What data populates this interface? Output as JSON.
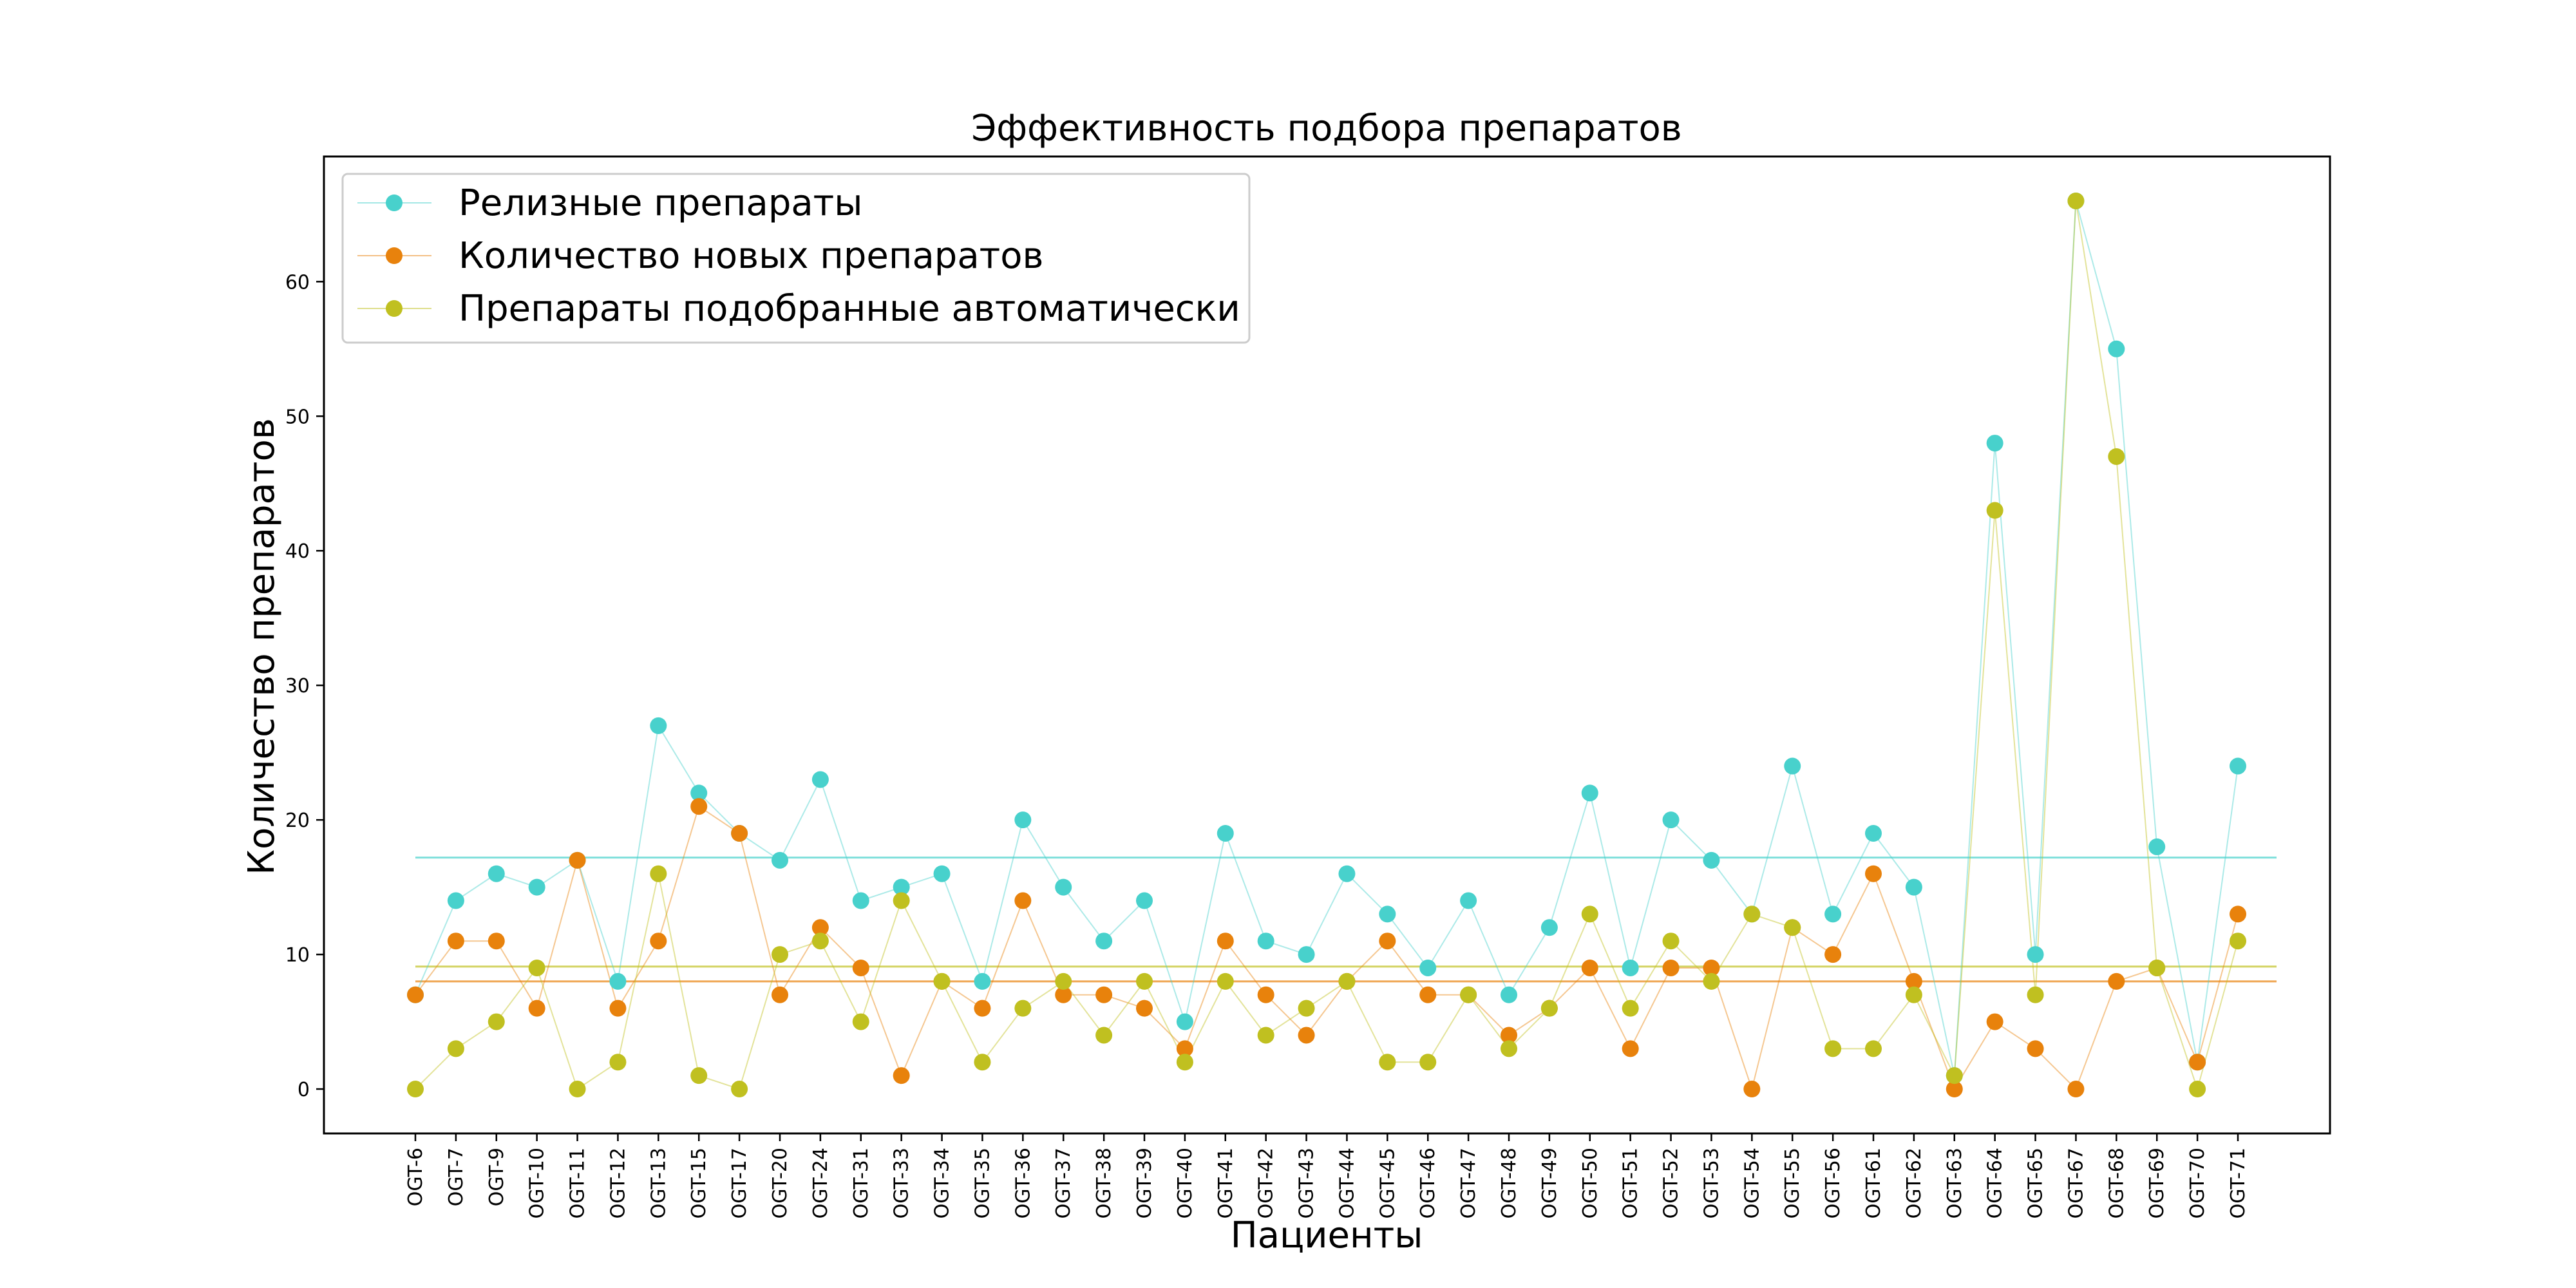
{
  "chart_data": {
    "type": "line",
    "title": "Эффективность подбора препаратов",
    "xlabel": "Пациенты",
    "ylabel": "Количество препаратов",
    "categories": [
      "OGT-6",
      "OGT-7",
      "OGT-9",
      "OGT-10",
      "OGT-11",
      "OGT-12",
      "OGT-13",
      "OGT-15",
      "OGT-17",
      "OGT-20",
      "OGT-24",
      "OGT-31",
      "OGT-33",
      "OGT-34",
      "OGT-35",
      "OGT-36",
      "OGT-37",
      "OGT-38",
      "OGT-39",
      "OGT-40",
      "OGT-41",
      "OGT-42",
      "OGT-43",
      "OGT-44",
      "OGT-45",
      "OGT-46",
      "OGT-47",
      "OGT-48",
      "OGT-49",
      "OGT-50",
      "OGT-51",
      "OGT-52",
      "OGT-53",
      "OGT-54",
      "OGT-55",
      "OGT-56",
      "OGT-61",
      "OGT-62",
      "OGT-63",
      "OGT-64",
      "OGT-65",
      "OGT-67",
      "OGT-68",
      "OGT-69",
      "OGT-70",
      "OGT-71"
    ],
    "ylim": [
      -3.3,
      69.3
    ],
    "yticks": [
      0,
      10,
      20,
      30,
      40,
      50,
      60
    ],
    "grid": false,
    "legend_position": "top-left",
    "series": [
      {
        "name": "Релизные препараты",
        "color": "#48d1cc",
        "mean": 17.2,
        "values": [
          7,
          14,
          16,
          15,
          17,
          8,
          27,
          22,
          19,
          17,
          23,
          14,
          15,
          16,
          8,
          20,
          15,
          11,
          14,
          5,
          19,
          11,
          10,
          16,
          13,
          9,
          14,
          7,
          12,
          22,
          9,
          20,
          17,
          13,
          24,
          13,
          19,
          15,
          1,
          48,
          10,
          66,
          55,
          18,
          2,
          24
        ]
      },
      {
        "name": "Количество новых препаратов",
        "color": "#e8820c",
        "mean": 8.0,
        "values": [
          7,
          11,
          11,
          6,
          17,
          6,
          11,
          21,
          19,
          7,
          12,
          9,
          1,
          8,
          6,
          14,
          7,
          7,
          6,
          3,
          11,
          7,
          4,
          8,
          11,
          7,
          7,
          4,
          6,
          9,
          3,
          9,
          9,
          0,
          12,
          10,
          16,
          8,
          0,
          5,
          3,
          0,
          8,
          9,
          2,
          13
        ]
      },
      {
        "name": "Препараты подобранные автоматически",
        "color": "#c0c020",
        "mean": 9.1,
        "values": [
          0,
          3,
          5,
          9,
          0,
          2,
          16,
          1,
          0,
          10,
          11,
          5,
          14,
          8,
          2,
          6,
          8,
          4,
          8,
          2,
          8,
          4,
          6,
          8,
          2,
          2,
          7,
          3,
          6,
          13,
          6,
          11,
          8,
          13,
          12,
          3,
          3,
          7,
          1,
          43,
          7,
          66,
          47,
          9,
          0,
          11
        ]
      }
    ]
  }
}
